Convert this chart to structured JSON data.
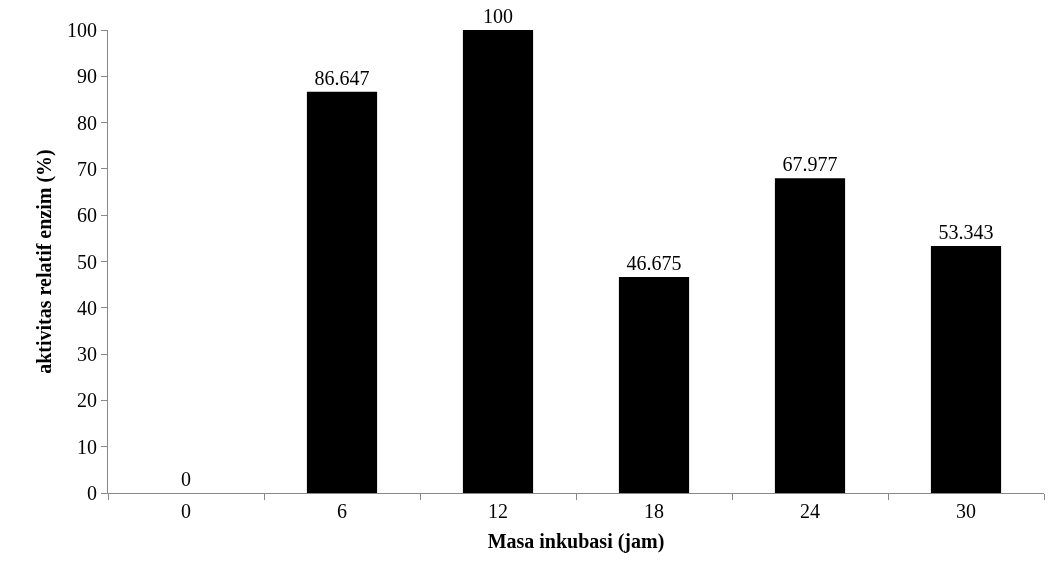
{
  "chart_data": {
    "type": "bar",
    "xlabel": "Masa inkubasi (jam)",
    "ylabel": "aktivitas relatif enzim (%)",
    "categories": [
      "0",
      "6",
      "12",
      "18",
      "24",
      "30"
    ],
    "values": [
      0,
      86.647,
      100,
      46.675,
      67.977,
      53.343
    ],
    "color": "#000000",
    "data_labels": true,
    "ylim": [
      0,
      100
    ],
    "yticks": [
      0,
      10,
      20,
      30,
      40,
      50,
      60,
      70,
      80,
      90,
      100
    ]
  }
}
